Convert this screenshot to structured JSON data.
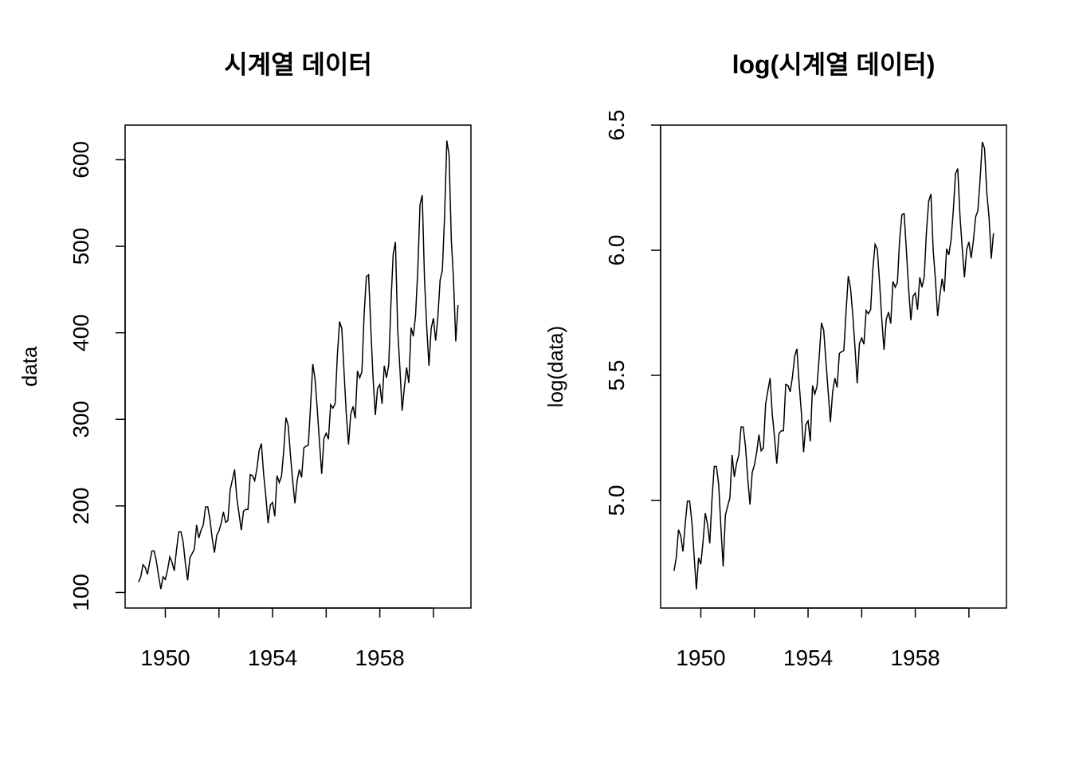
{
  "chart_data": [
    {
      "type": "line",
      "title": "시계열 데이터",
      "xlabel": "",
      "ylabel": "data",
      "x_start": 1949,
      "x_step": 0.08333333333333333,
      "xlim": [
        1948.5,
        1961.4
      ],
      "ylim": [
        82,
        640
      ],
      "xticks": [
        1950,
        1952,
        1954,
        1956,
        1958,
        1960
      ],
      "xtick_labels": [
        "1950",
        "",
        "1954",
        "",
        "1958",
        ""
      ],
      "yticks": [
        100,
        200,
        300,
        400,
        500,
        600
      ],
      "ytick_labels": [
        "100",
        "200",
        "300",
        "400",
        "500",
        "600"
      ],
      "series": [
        {
          "values": [
            112,
            118,
            132,
            129,
            121,
            135,
            148,
            148,
            136,
            119,
            104,
            118,
            115,
            126,
            141,
            135,
            125,
            149,
            170,
            170,
            158,
            133,
            114,
            140,
            145,
            150,
            178,
            163,
            172,
            178,
            199,
            199,
            184,
            162,
            146,
            166,
            171,
            180,
            193,
            181,
            183,
            218,
            230,
            242,
            209,
            191,
            172,
            194,
            196,
            196,
            236,
            235,
            229,
            243,
            264,
            272,
            237,
            211,
            180,
            201,
            204,
            188,
            235,
            227,
            234,
            264,
            302,
            293,
            259,
            229,
            203,
            229,
            242,
            233,
            267,
            269,
            270,
            315,
            364,
            347,
            312,
            274,
            237,
            278,
            284,
            277,
            317,
            313,
            318,
            374,
            413,
            405,
            355,
            306,
            271,
            306,
            315,
            301,
            356,
            348,
            355,
            422,
            465,
            467,
            404,
            347,
            305,
            336,
            340,
            318,
            362,
            348,
            363,
            435,
            491,
            505,
            404,
            359,
            310,
            337,
            360,
            342,
            406,
            396,
            420,
            472,
            548,
            559,
            463,
            407,
            362,
            405,
            417,
            391,
            419,
            461,
            472,
            535,
            622,
            606,
            508,
            461,
            390,
            432
          ]
        }
      ]
    },
    {
      "type": "line",
      "title": "log(시계열 데이터)",
      "xlabel": "",
      "ylabel": "log(data)",
      "x_start": 1949,
      "x_step": 0.08333333333333333,
      "xlim": [
        1948.5,
        1961.4
      ],
      "ylim": [
        4.57,
        6.5
      ],
      "xticks": [
        1950,
        1952,
        1954,
        1956,
        1958,
        1960
      ],
      "xtick_labels": [
        "1950",
        "",
        "1954",
        "",
        "1958",
        ""
      ],
      "yticks": [
        5.0,
        5.5,
        6.0,
        6.5
      ],
      "ytick_labels": [
        "5.0",
        "5.5",
        "6.0",
        "6.5"
      ],
      "transform": "log",
      "series": [
        {
          "values": [
            112,
            118,
            132,
            129,
            121,
            135,
            148,
            148,
            136,
            119,
            104,
            118,
            115,
            126,
            141,
            135,
            125,
            149,
            170,
            170,
            158,
            133,
            114,
            140,
            145,
            150,
            178,
            163,
            172,
            178,
            199,
            199,
            184,
            162,
            146,
            166,
            171,
            180,
            193,
            181,
            183,
            218,
            230,
            242,
            209,
            191,
            172,
            194,
            196,
            196,
            236,
            235,
            229,
            243,
            264,
            272,
            237,
            211,
            180,
            201,
            204,
            188,
            235,
            227,
            234,
            264,
            302,
            293,
            259,
            229,
            203,
            229,
            242,
            233,
            267,
            269,
            270,
            315,
            364,
            347,
            312,
            274,
            237,
            278,
            284,
            277,
            317,
            313,
            318,
            374,
            413,
            405,
            355,
            306,
            271,
            306,
            315,
            301,
            356,
            348,
            355,
            422,
            465,
            467,
            404,
            347,
            305,
            336,
            340,
            318,
            362,
            348,
            363,
            435,
            491,
            505,
            404,
            359,
            310,
            337,
            360,
            342,
            406,
            396,
            420,
            472,
            548,
            559,
            463,
            407,
            362,
            405,
            417,
            391,
            419,
            461,
            472,
            535,
            622,
            606,
            508,
            461,
            390,
            432
          ]
        }
      ]
    }
  ]
}
